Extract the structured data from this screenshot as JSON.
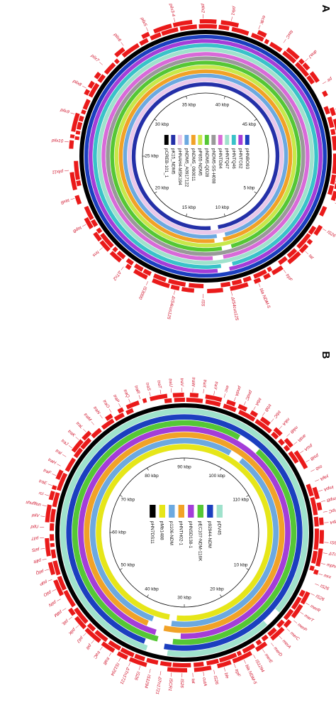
{
  "panels": [
    {
      "letter": "A",
      "legend": [
        {
          "name": "pHNBO93",
          "color": "#1b3fbf"
        },
        {
          "name": "pHNTC62",
          "color": "#a43dd8"
        },
        {
          "name": "pHNTQ46",
          "color": "#39c2c9"
        },
        {
          "name": "pHNTQ47",
          "color": "#9fe2cc"
        },
        {
          "name": "pHNTD84",
          "color": "#d86ad8"
        },
        {
          "name": "pNDM5-SS-H008",
          "color": "#999999"
        },
        {
          "name": "pNDM5-QD28",
          "color": "#55c735"
        },
        {
          "name": "pP855-NDM5",
          "color": "#c8e84a"
        },
        {
          "name": "pNDM5_090011",
          "color": "#f1a227"
        },
        {
          "name": "pNDM5_A0917122",
          "color": "#6ca9e0"
        },
        {
          "name": "pHNAH4-MSK194",
          "color": "#e9c8ea"
        },
        {
          "name": "pK15_NDM5",
          "color": "#2430a8"
        },
        {
          "name": "pCREB-101_1",
          "color": "#000000"
        }
      ],
      "kbp_ticks": [
        "5 kbp",
        "10 kbp",
        "15 kbp",
        "20 kbp",
        "25 kbp",
        "30 kbp",
        "35 kbp",
        "40 kbp",
        "45 kbp"
      ],
      "gene_labels": [
        "parA",
        "IS4cus3",
        "IS26",
        "tat",
        "trpF",
        "bla NDM-5",
        "ΔIS4cus125",
        "IS5",
        "ΔIS4cus125",
        "IS3000",
        "ΔTn2",
        "hns",
        "topB",
        "taxB",
        "pilx11",
        "pilx10",
        "pilx9",
        "pilx8",
        "pilx7",
        "pilx6",
        "pilx5",
        "pilx3-4",
        "pilx2",
        "pilx1",
        "ecfK",
        "taxC",
        "dnaJ",
        "pir",
        "bis",
        "dsp3"
      ]
    },
    {
      "letter": "B",
      "legend": [
        {
          "name": "pDV45",
          "color": "#9fe2cc"
        },
        {
          "name": "p92944-NDM",
          "color": "#1b3fbf"
        },
        {
          "name": "pEC107-NDM-116K",
          "color": "#55c735"
        },
        {
          "name": "pHNSD138-1",
          "color": "#a43dd8"
        },
        {
          "name": "pHNTH02-1",
          "color": "#f1a227"
        },
        {
          "name": "p1106-NDM",
          "color": "#6ca9e0"
        },
        {
          "name": "pMb1488",
          "color": "#e6e619"
        },
        {
          "name": "pHN7DS11",
          "color": "#000000"
        }
      ],
      "kbp_ticks": [
        "10 kbp",
        "20 kbp",
        "30 kbp",
        "40 kbp",
        "50 kbp",
        "60 kbp",
        "70 kbp",
        "80 kbp",
        "90 kbp",
        "100 kbp",
        "110 kbp"
      ],
      "gene_labels": [
        "IS6100",
        "ΔTn2",
        "mphA",
        "mrx",
        "IS26",
        "IS26",
        "merR",
        "merT",
        "merP",
        "merC",
        "merA",
        "merD",
        "merE",
        "IS1294",
        "bla NDM-5",
        "trpF",
        "ble",
        "IS26",
        "cutA",
        "tat",
        "IS26",
        "ISCR1",
        "ΔTn1721",
        "IS1294",
        "IS26",
        "ΔTn1721",
        "IS1294",
        "traB",
        "traC",
        "pilI",
        "pilJ",
        "pilK",
        "pilL",
        "pilM",
        "pilN",
        "pilO",
        "pilP",
        "pilQ",
        "pilR",
        "pilS",
        "pilT",
        "pilU",
        "pilV",
        "shufflon",
        "rci",
        "traE",
        "traF",
        "traH",
        "traI",
        "traJ",
        "traK",
        "traL",
        "traM",
        "traN",
        "traO",
        "traP",
        "traQ",
        "traR",
        "traS",
        "traT",
        "traU",
        "traV",
        "traW",
        "traX",
        "traY",
        "exc",
        "pndA",
        "pndC",
        "trbA",
        "trbB",
        "trbC",
        "nikA",
        "nikB",
        "ardA",
        "psiA",
        "psiB",
        "ssb",
        "yajA",
        "impA",
        "impB",
        "impC",
        "repA"
      ]
    }
  ]
}
